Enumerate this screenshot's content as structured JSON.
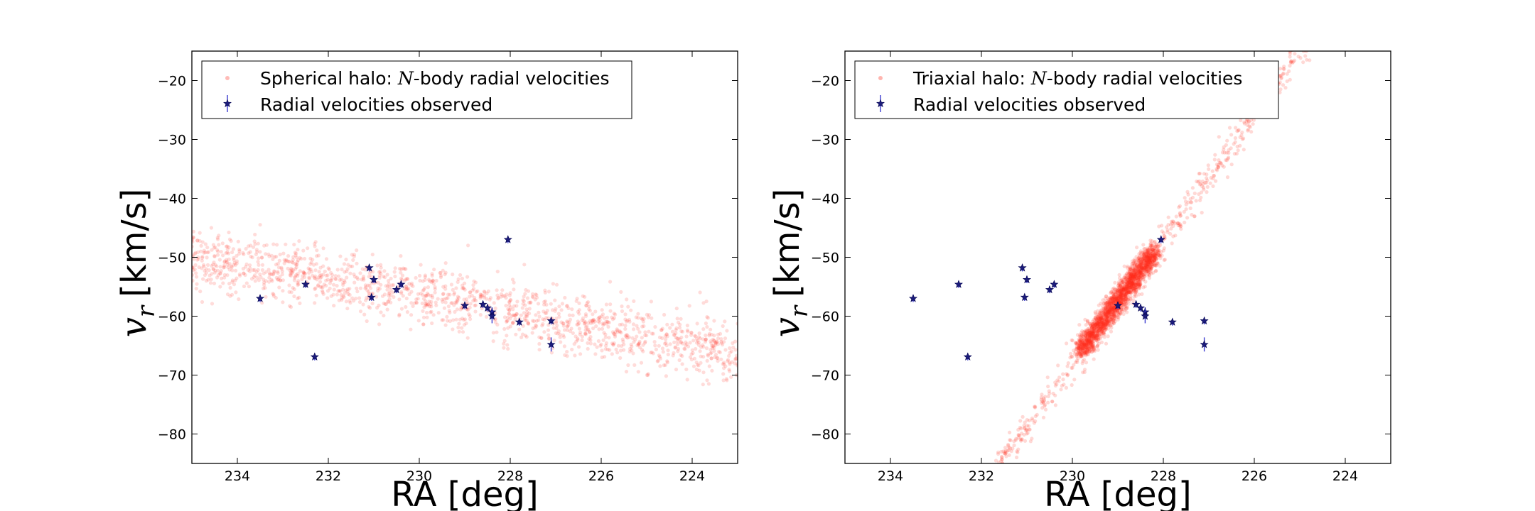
{
  "chart_data": [
    {
      "type": "scatter",
      "title": "",
      "xlabel": "RA [deg]",
      "ylabel": {
        "symbol": "v",
        "subscript": "r",
        "unit": "[km/s]"
      },
      "xlim": [
        235,
        223
      ],
      "ylim": [
        -85,
        -15
      ],
      "x_ticks": [
        234,
        232,
        230,
        228,
        226,
        224
      ],
      "y_ticks": [
        -80,
        -70,
        -60,
        -50,
        -40,
        -30,
        -20
      ],
      "legend_position": "top-left",
      "series": [
        {
          "name": {
            "before": "Spherical halo: ",
            "math": "N",
            "after": "-body radial velocities"
          },
          "kind": "nbody-cloud",
          "color": "#ff3b30",
          "points": []
        },
        {
          "name": {
            "before": "Radial velocities observed",
            "math": "",
            "after": ""
          },
          "kind": "observed",
          "color": "#1c1c7a",
          "points": [
            {
              "x": 233.5,
              "y": -57.0,
              "err": 0.6
            },
            {
              "x": 232.5,
              "y": -54.6,
              "err": 0.6
            },
            {
              "x": 232.3,
              "y": -66.9,
              "err": 0.6
            },
            {
              "x": 231.1,
              "y": -51.8,
              "err": 0.6
            },
            {
              "x": 231.0,
              "y": -53.8,
              "err": 0.6
            },
            {
              "x": 231.05,
              "y": -56.8,
              "err": 0.6
            },
            {
              "x": 230.5,
              "y": -55.5,
              "err": 0.6
            },
            {
              "x": 230.4,
              "y": -54.6,
              "err": 0.6
            },
            {
              "x": 229.0,
              "y": -58.2,
              "err": 0.6
            },
            {
              "x": 228.6,
              "y": -58.0,
              "err": 0.6
            },
            {
              "x": 228.5,
              "y": -58.6,
              "err": 0.6
            },
            {
              "x": 228.4,
              "y": -59.3,
              "err": 0.8
            },
            {
              "x": 228.4,
              "y": -60.0,
              "err": 1.2
            },
            {
              "x": 228.05,
              "y": -47.0,
              "err": 0.6
            },
            {
              "x": 227.8,
              "y": -61.0,
              "err": 0.6
            },
            {
              "x": 227.1,
              "y": -60.8,
              "err": 0.6
            },
            {
              "x": 227.1,
              "y": -64.8,
              "err": 1.2
            }
          ]
        }
      ],
      "cloud": {
        "mode": "band",
        "x_from": 235,
        "x_to": 223,
        "y_at_start": -50,
        "y_at_end": -66.5,
        "spread": 2.6,
        "count": 1500,
        "seed": 11
      }
    },
    {
      "type": "scatter",
      "title": "",
      "xlabel": "RA [deg]",
      "ylabel": {
        "symbol": "v",
        "subscript": "r",
        "unit": "[km/s]"
      },
      "xlim": [
        235,
        223
      ],
      "ylim": [
        -85,
        -15
      ],
      "x_ticks": [
        234,
        232,
        230,
        228,
        226,
        224
      ],
      "y_ticks": [
        -80,
        -70,
        -60,
        -50,
        -40,
        -30,
        -20
      ],
      "legend_position": "top-left",
      "series": [
        {
          "name": {
            "before": "Triaxial halo: ",
            "math": "N",
            "after": "-body radial velocities"
          },
          "kind": "nbody-cloud",
          "color": "#ff2a1a",
          "points": []
        },
        {
          "name": {
            "before": "Radial velocities observed",
            "math": "",
            "after": ""
          },
          "kind": "observed",
          "color": "#1c1c7a",
          "points": [
            {
              "x": 233.5,
              "y": -57.0,
              "err": 0.6
            },
            {
              "x": 232.5,
              "y": -54.6,
              "err": 0.6
            },
            {
              "x": 232.3,
              "y": -66.9,
              "err": 0.6
            },
            {
              "x": 231.1,
              "y": -51.8,
              "err": 0.6
            },
            {
              "x": 231.0,
              "y": -53.8,
              "err": 0.6
            },
            {
              "x": 231.05,
              "y": -56.8,
              "err": 0.6
            },
            {
              "x": 230.5,
              "y": -55.5,
              "err": 0.6
            },
            {
              "x": 230.4,
              "y": -54.6,
              "err": 0.6
            },
            {
              "x": 229.0,
              "y": -58.2,
              "err": 0.6
            },
            {
              "x": 228.6,
              "y": -58.0,
              "err": 0.6
            },
            {
              "x": 228.5,
              "y": -58.6,
              "err": 0.6
            },
            {
              "x": 228.4,
              "y": -59.3,
              "err": 0.8
            },
            {
              "x": 228.4,
              "y": -60.0,
              "err": 1.2
            },
            {
              "x": 228.05,
              "y": -47.0,
              "err": 0.6
            },
            {
              "x": 227.8,
              "y": -61.0,
              "err": 0.6
            },
            {
              "x": 227.1,
              "y": -60.8,
              "err": 0.6
            },
            {
              "x": 227.1,
              "y": -64.8,
              "err": 1.2
            }
          ]
        }
      ],
      "cloud": {
        "mode": "stream",
        "x_from": 231.7,
        "x_to": 224.9,
        "y_at_start": -86,
        "y_at_end": -14,
        "core_x": [
          229.8,
          228.2
        ],
        "spread": 0.9,
        "count": 2600,
        "seed": 23
      }
    }
  ]
}
